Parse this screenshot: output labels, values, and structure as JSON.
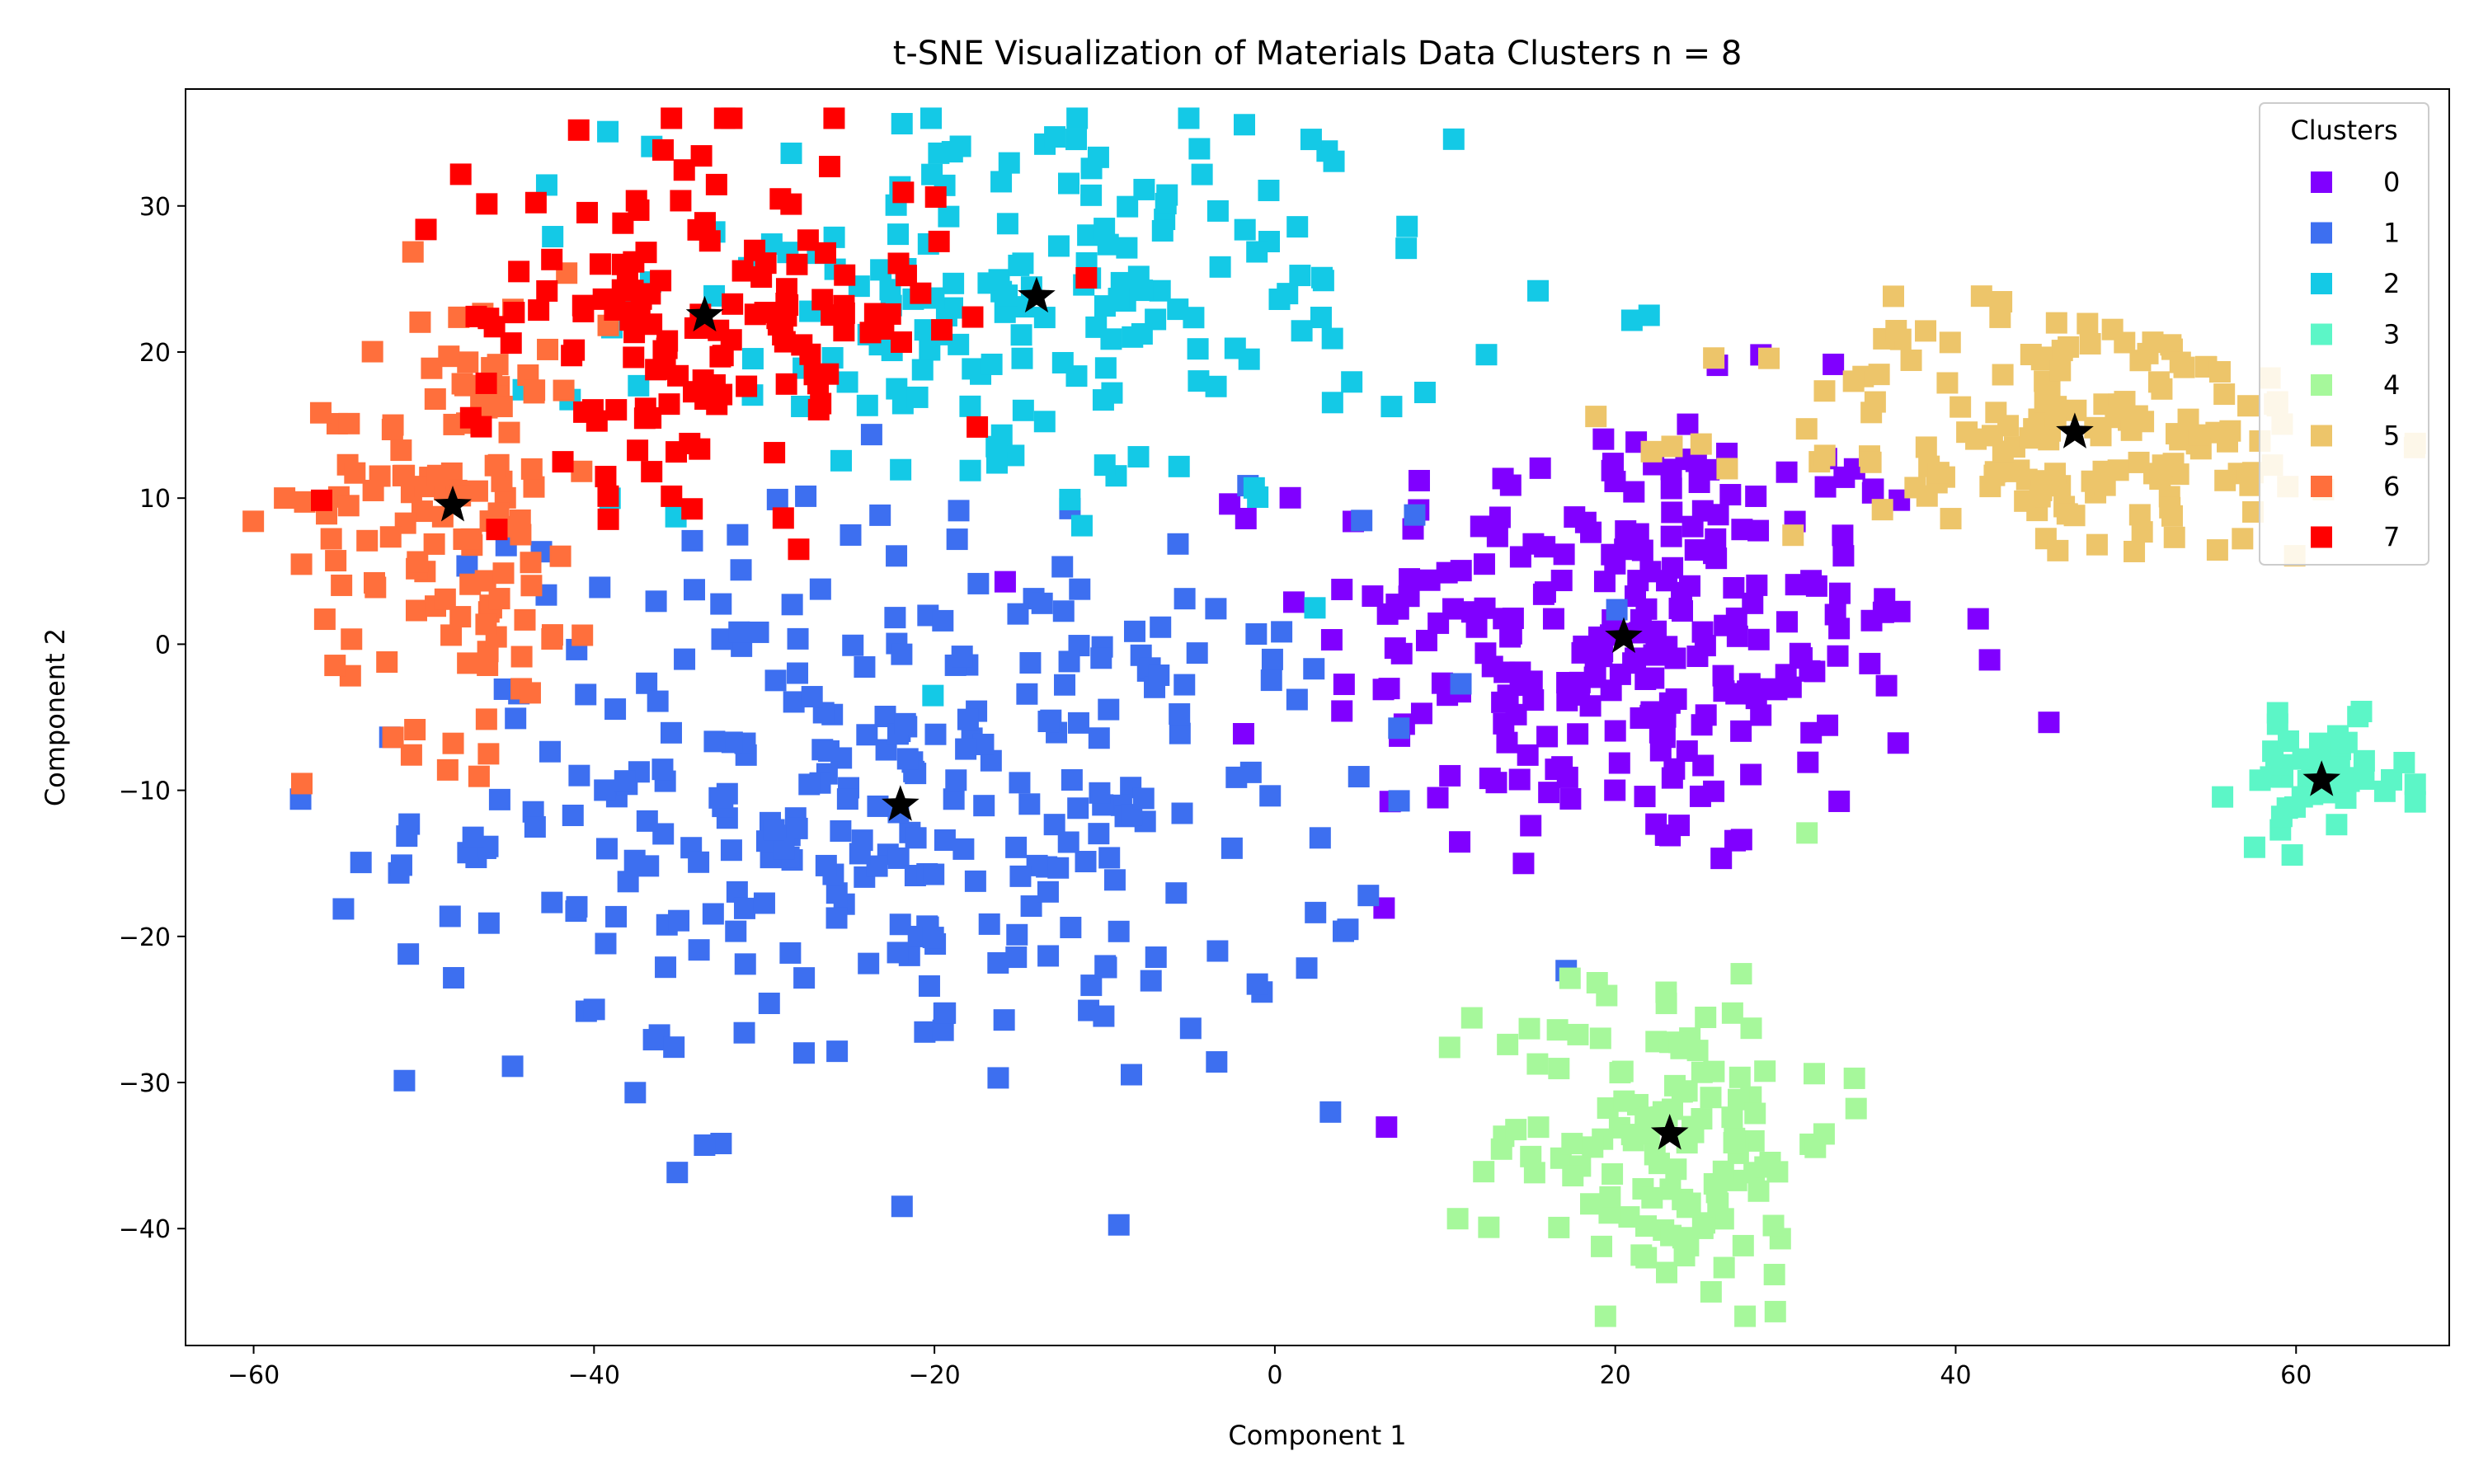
{
  "chart_data": {
    "type": "scatter",
    "title": "t-SNE Visualization of Materials Data Clusters n = 8",
    "xlabel": "Component 1",
    "ylabel": "Component 2",
    "xlim": [
      -64,
      69
    ],
    "ylim": [
      -48,
      38
    ],
    "xticks": [
      -60,
      -40,
      -20,
      0,
      20,
      40,
      60
    ],
    "yticks": [
      -40,
      -30,
      -20,
      -10,
      0,
      10,
      20,
      30
    ],
    "grid": false,
    "legend": {
      "title": "Clusters",
      "position": "top-right"
    },
    "clusters": [
      {
        "name": "0",
        "color": "#8000ff",
        "center": [
          20.5,
          0.5
        ],
        "spread": [
          9,
          8
        ],
        "count": 260
      },
      {
        "name": "1",
        "color": "#3d6ff0",
        "center": [
          -22,
          -11
        ],
        "spread": [
          14,
          10
        ],
        "count": 320
      },
      {
        "name": "2",
        "color": "#14c9e6",
        "center": [
          -14,
          23.5
        ],
        "spread": [
          12,
          7
        ],
        "count": 180
      },
      {
        "name": "3",
        "color": "#5cf6c7",
        "center": [
          61.5,
          -9.5
        ],
        "spread": [
          2.5,
          2
        ],
        "count": 45
      },
      {
        "name": "4",
        "color": "#a6f89b",
        "center": [
          23,
          -33.5
        ],
        "spread": [
          5,
          6
        ],
        "count": 130
      },
      {
        "name": "5",
        "color": "#edc56a",
        "center": [
          47,
          14.5
        ],
        "spread": [
          9,
          4.5
        ],
        "count": 160
      },
      {
        "name": "6",
        "color": "#ff6f3c",
        "center": [
          -48,
          9.5
        ],
        "spread": [
          4.5,
          8
        ],
        "count": 130
      },
      {
        "name": "7",
        "color": "#ff0000",
        "center": [
          -33.5,
          22.5
        ],
        "spread": [
          7,
          6
        ],
        "count": 150
      }
    ],
    "centroids": [
      {
        "cluster": "0",
        "x": 20.5,
        "y": 0.5
      },
      {
        "cluster": "1",
        "x": -22,
        "y": -11
      },
      {
        "cluster": "2",
        "x": -14,
        "y": 23.8
      },
      {
        "cluster": "3",
        "x": 61.5,
        "y": -9.3
      },
      {
        "cluster": "4",
        "x": 23.2,
        "y": -33.5
      },
      {
        "cluster": "5",
        "x": 47,
        "y": 14.5
      },
      {
        "cluster": "6",
        "x": -48.3,
        "y": 9.5
      },
      {
        "cluster": "7",
        "x": -33.5,
        "y": 22.5
      }
    ]
  }
}
